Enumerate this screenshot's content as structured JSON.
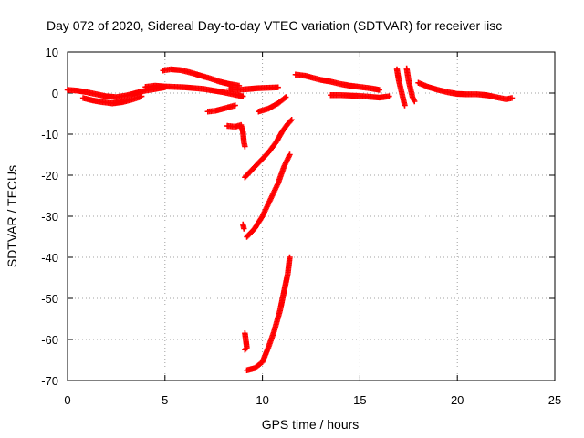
{
  "chart_data": {
    "type": "scatter",
    "title": "Day 072 of 2020, Sidereal Day-to-day VTEC variation (SDTVAR) for receiver iisc",
    "xlabel": "GPS time / hours",
    "ylabel": "SDTVAR / TECUs",
    "xlim": [
      0,
      25
    ],
    "ylim": [
      -70,
      10
    ],
    "xticks": [
      0,
      5,
      10,
      15,
      20,
      25
    ],
    "yticks": [
      10,
      0,
      -10,
      -20,
      -30,
      -40,
      -50,
      -60,
      -70
    ],
    "grid": true,
    "marker": "+",
    "series": [
      {
        "name": "SDTVAR",
        "color": "#ff0000",
        "segments": [
          {
            "label": "band-early-upper",
            "x": [
              0.0,
              0.5,
              1.0,
              1.5,
              2.0,
              2.5,
              3.0,
              3.5,
              4.0,
              4.5,
              5.0
            ],
            "y": [
              0.8,
              0.6,
              0.2,
              -0.3,
              -0.8,
              -1.0,
              -0.6,
              0.0,
              0.6,
              1.0,
              1.4
            ]
          },
          {
            "label": "band-early-lower",
            "x": [
              0.8,
              1.3,
              1.8,
              2.3,
              2.8,
              3.3,
              3.8
            ],
            "y": [
              -1.2,
              -1.8,
              -2.2,
              -2.5,
              -2.2,
              -1.6,
              -0.8
            ]
          },
          {
            "label": "band-morning",
            "x": [
              4.0,
              4.5,
              5.0,
              5.5,
              6.0,
              6.5,
              7.0,
              7.5,
              8.0,
              8.5,
              9.0
            ],
            "y": [
              1.5,
              1.8,
              1.6,
              1.5,
              1.4,
              1.2,
              1.0,
              0.6,
              0.2,
              -0.3,
              -0.8
            ]
          },
          {
            "label": "band-peak",
            "x": [
              4.9,
              5.3,
              5.8,
              6.3,
              6.8,
              7.3,
              7.8,
              8.3,
              8.8
            ],
            "y": [
              5.5,
              5.8,
              5.6,
              5.0,
              4.3,
              3.6,
              2.8,
              2.2,
              1.8
            ]
          },
          {
            "label": "band-dip",
            "x": [
              7.2,
              7.6,
              8.0,
              8.3,
              8.6
            ],
            "y": [
              -4.5,
              -4.3,
              -3.8,
              -3.4,
              -3.0
            ]
          },
          {
            "label": "band-after",
            "x": [
              8.3,
              8.8,
              9.3,
              9.8,
              10.3,
              10.8
            ],
            "y": [
              1.0,
              0.8,
              1.0,
              1.2,
              1.3,
              1.4
            ]
          },
          {
            "label": "band-mid-lower",
            "x": [
              9.8,
              10.3,
              10.8,
              11.2
            ],
            "y": [
              -4.5,
              -3.8,
              -2.5,
              -1.0
            ]
          },
          {
            "label": "trace-a",
            "x": [
              9.1,
              9.5,
              9.9,
              10.3,
              10.7,
              11.0,
              11.3,
              11.5
            ],
            "y": [
              -20.5,
              -18.5,
              -16.5,
              -14.5,
              -12.0,
              -9.5,
              -7.5,
              -6.5
            ]
          },
          {
            "label": "trace-b",
            "x": [
              9.2,
              9.6,
              10.0,
              10.4,
              10.8,
              11.1,
              11.4
            ],
            "y": [
              -35.0,
              -33.0,
              -30.0,
              -26.0,
              -22.0,
              -18.0,
              -15.0
            ]
          },
          {
            "label": "trace-c",
            "x": [
              9.2,
              9.6,
              10.0,
              10.3,
              10.6,
              10.9,
              11.1,
              11.3,
              11.4
            ],
            "y": [
              -67.5,
              -67.0,
              -65.5,
              -62.0,
              -58.0,
              -53.0,
              -48.5,
              -44.0,
              -40.0
            ]
          },
          {
            "label": "scatter-mid",
            "x": [
              8.2,
              8.6,
              8.9,
              9.0,
              9.05,
              9.1,
              9.0,
              9.05,
              9.1,
              9.2,
              9.1
            ],
            "y": [
              -8.0,
              -8.2,
              -7.8,
              -9.5,
              -12.0,
              -13.0,
              -32.0,
              -33.0,
              -58.5,
              -62.0,
              -62.5
            ]
          },
          {
            "label": "band-late",
            "x": [
              11.7,
              12.2,
              13.0,
              13.5,
              14.0,
              14.5,
              15.0,
              15.5,
              16.0
            ],
            "y": [
              4.5,
              4.2,
              3.2,
              2.8,
              2.2,
              1.8,
              1.5,
              1.2,
              0.8
            ]
          },
          {
            "label": "band-late-lower",
            "x": [
              13.5,
              14.0,
              14.5,
              15.0,
              15.5,
              16.0,
              16.5
            ],
            "y": [
              -0.5,
              -0.5,
              -0.6,
              -0.7,
              -0.9,
              -1.1,
              -0.8
            ]
          },
          {
            "label": "spikes-17",
            "x": [
              16.9,
              17.0,
              17.1,
              17.2,
              17.3,
              17.4,
              17.5,
              17.6,
              17.7,
              17.8
            ],
            "y": [
              5.8,
              3.0,
              1.0,
              -1.0,
              -3.0,
              6.0,
              3.0,
              1.0,
              -1.0,
              -2.0
            ]
          },
          {
            "label": "band-evening",
            "x": [
              18.0,
              18.5,
              19.0,
              19.5,
              20.0,
              20.5,
              21.0,
              21.5,
              22.0,
              22.5,
              22.8
            ],
            "y": [
              2.5,
              1.5,
              0.8,
              0.2,
              -0.2,
              -0.3,
              -0.3,
              -0.5,
              -1.0,
              -1.5,
              -1.2
            ]
          }
        ]
      }
    ]
  }
}
